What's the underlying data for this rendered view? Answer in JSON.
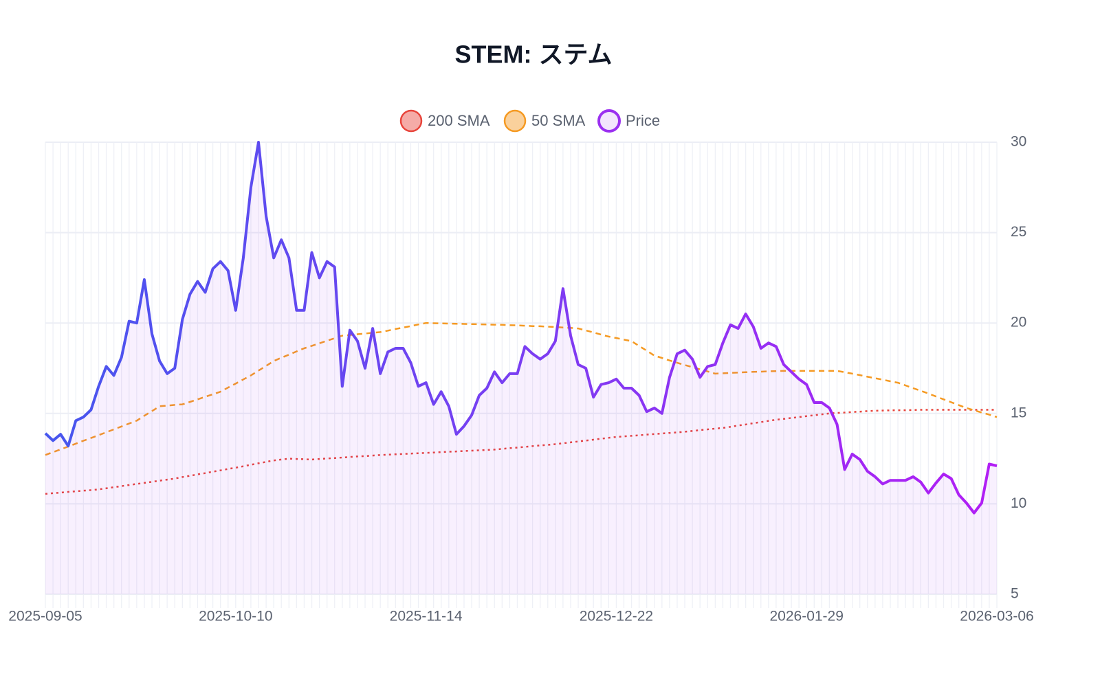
{
  "chart_data": {
    "type": "line",
    "title": "STEM: ステム",
    "categories": [
      "2025-09-05",
      null,
      null,
      null,
      null,
      null,
      null,
      null,
      null,
      null,
      null,
      null,
      null,
      null,
      null,
      null,
      null,
      null,
      null,
      null,
      null,
      null,
      null,
      null,
      null,
      "2025-10-10",
      null,
      null,
      null,
      null,
      null,
      null,
      null,
      null,
      null,
      null,
      null,
      null,
      null,
      null,
      null,
      null,
      null,
      null,
      null,
      null,
      null,
      null,
      null,
      null,
      "2025-11-14",
      null,
      null,
      null,
      null,
      null,
      null,
      null,
      null,
      null,
      null,
      null,
      null,
      null,
      null,
      null,
      null,
      null,
      null,
      null,
      null,
      null,
      null,
      null,
      null,
      "2025-12-22",
      null,
      null,
      null,
      null,
      null,
      null,
      null,
      null,
      null,
      null,
      null,
      null,
      null,
      null,
      null,
      null,
      null,
      null,
      null,
      null,
      null,
      null,
      null,
      null,
      "2026-01-29",
      null,
      null,
      null,
      null,
      null,
      null,
      null,
      null,
      null,
      null,
      null,
      null,
      null,
      null,
      null,
      null,
      null,
      null,
      null,
      null,
      null,
      null,
      null,
      null,
      "2026-03-06"
    ],
    "series": [
      {
        "name": "200 SMA",
        "color": "#e8453c",
        "line_style": "dotted",
        "values": [
          10.55,
          10.59,
          10.62,
          10.66,
          10.69,
          10.73,
          10.76,
          10.8,
          10.86,
          10.92,
          10.98,
          11.04,
          11.1,
          11.16,
          11.22,
          11.28,
          11.34,
          11.4,
          11.48,
          11.55,
          11.63,
          11.7,
          11.78,
          11.85,
          11.93,
          12.0,
          12.08,
          12.16,
          12.24,
          12.32,
          12.4,
          12.45,
          12.5,
          12.48,
          12.47,
          12.45,
          12.48,
          12.51,
          12.53,
          12.56,
          12.59,
          12.62,
          12.64,
          12.67,
          12.7,
          12.72,
          12.74,
          12.76,
          12.78,
          12.8,
          12.82,
          12.84,
          12.86,
          12.88,
          12.9,
          12.92,
          12.94,
          12.96,
          12.98,
          13.0,
          13.04,
          13.08,
          13.11,
          13.15,
          13.19,
          13.23,
          13.26,
          13.3,
          13.35,
          13.4,
          13.45,
          13.5,
          13.55,
          13.6,
          13.65,
          13.7,
          13.73,
          13.76,
          13.79,
          13.83,
          13.86,
          13.89,
          13.92,
          13.95,
          13.99,
          14.03,
          14.08,
          14.12,
          14.16,
          14.2,
          14.26,
          14.33,
          14.39,
          14.46,
          14.52,
          14.59,
          14.65,
          14.7,
          14.75,
          14.8,
          14.85,
          14.9,
          14.95,
          15.0,
          15.03,
          15.05,
          15.08,
          15.1,
          15.13,
          15.15,
          15.16,
          15.17,
          15.18,
          15.18,
          15.19,
          15.2,
          15.2,
          15.2,
          15.2,
          15.2,
          15.2,
          15.2,
          15.2,
          15.2,
          15.2,
          15.2
        ]
      },
      {
        "name": "50 SMA",
        "color": "#f59a23",
        "line_style": "dashed",
        "values": [
          12.7,
          12.86,
          13.01,
          13.17,
          13.33,
          13.49,
          13.64,
          13.8,
          13.96,
          14.12,
          14.28,
          14.44,
          14.6,
          14.87,
          15.13,
          15.4,
          15.43,
          15.47,
          15.5,
          15.64,
          15.78,
          15.92,
          16.06,
          16.2,
          16.43,
          16.65,
          16.88,
          17.1,
          17.37,
          17.63,
          17.9,
          18.08,
          18.25,
          18.43,
          18.6,
          18.74,
          18.88,
          19.02,
          19.16,
          19.3,
          19.34,
          19.38,
          19.42,
          19.46,
          19.5,
          19.58,
          19.67,
          19.75,
          19.83,
          19.92,
          20.0,
          19.99,
          19.98,
          19.97,
          19.96,
          19.95,
          19.94,
          19.93,
          19.92,
          19.91,
          19.9,
          19.88,
          19.87,
          19.85,
          19.83,
          19.82,
          19.8,
          19.78,
          19.75,
          19.73,
          19.7,
          19.59,
          19.48,
          19.36,
          19.25,
          19.17,
          19.08,
          19.0,
          18.73,
          18.47,
          18.2,
          18.07,
          17.93,
          17.8,
          17.68,
          17.56,
          17.44,
          17.32,
          17.2,
          17.22,
          17.24,
          17.26,
          17.28,
          17.3,
          17.31,
          17.33,
          17.34,
          17.35,
          17.35,
          17.35,
          17.35,
          17.35,
          17.35,
          17.35,
          17.35,
          17.28,
          17.2,
          17.12,
          17.03,
          16.95,
          16.87,
          16.78,
          16.7,
          16.55,
          16.4,
          16.25,
          16.1,
          15.94,
          15.78,
          15.62,
          15.46,
          15.3,
          15.18,
          15.05,
          14.93,
          14.8
        ]
      },
      {
        "name": "Price",
        "color": "#9b30f0",
        "line_style": "solid",
        "area": true,
        "values": [
          13.9,
          13.5,
          13.85,
          13.2,
          14.6,
          14.8,
          15.2,
          16.5,
          17.6,
          17.1,
          18.1,
          20.1,
          20.0,
          22.4,
          19.4,
          17.9,
          17.2,
          17.5,
          20.2,
          21.6,
          22.3,
          21.7,
          23.0,
          23.4,
          22.9,
          20.7,
          23.6,
          27.5,
          30.0,
          25.9,
          23.6,
          24.6,
          23.6,
          20.7,
          20.7,
          23.9,
          22.5,
          23.4,
          23.1,
          16.5,
          19.6,
          19.0,
          17.5,
          19.7,
          17.2,
          18.4,
          18.6,
          18.6,
          17.8,
          16.5,
          16.7,
          15.5,
          16.2,
          15.4,
          13.85,
          14.3,
          14.9,
          16.0,
          16.4,
          17.3,
          16.7,
          17.2,
          17.2,
          18.7,
          18.3,
          18.0,
          18.3,
          19.0,
          21.9,
          19.3,
          17.7,
          17.5,
          15.9,
          16.6,
          16.7,
          16.9,
          16.4,
          16.4,
          16.0,
          15.1,
          15.3,
          15.0,
          17.0,
          18.3,
          18.5,
          18.0,
          17.0,
          17.6,
          17.7,
          18.9,
          19.9,
          19.7,
          20.5,
          19.8,
          18.6,
          18.9,
          18.7,
          17.7,
          17.3,
          16.9,
          16.6,
          15.6,
          15.6,
          15.3,
          14.4,
          11.9,
          12.75,
          12.45,
          11.8,
          11.5,
          11.1,
          11.3,
          11.3,
          11.3,
          11.5,
          11.2,
          10.6,
          11.15,
          11.65,
          11.4,
          10.5,
          10.05,
          9.5,
          10.05,
          12.2,
          12.1
        ]
      }
    ],
    "ylim": [
      5,
      30
    ],
    "yticks": [
      5,
      10,
      15,
      20,
      25,
      30
    ],
    "y_axis_side": "right",
    "grid": true
  }
}
